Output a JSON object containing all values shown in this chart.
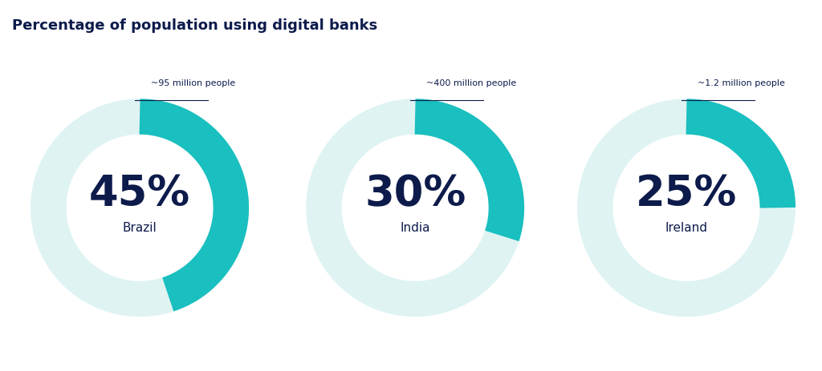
{
  "title": "Percentage of population using digital banks",
  "title_color": "#0d1b4b",
  "title_fontsize": 13,
  "background_color": "#ffffff",
  "charts": [
    {
      "percentage": 45,
      "label": "45%",
      "country": "Brazil",
      "annotation": "~95 million people",
      "filled_color": "#1abfbf",
      "empty_color": "#dff3f3"
    },
    {
      "percentage": 30,
      "label": "30%",
      "country": "India",
      "annotation": "~400 million people",
      "filled_color": "#1abfbf",
      "empty_color": "#dff3f3"
    },
    {
      "percentage": 25,
      "label": "25%",
      "country": "Ireland",
      "annotation": "~1.2 million people",
      "filled_color": "#1abfbf",
      "empty_color": "#dff3f3"
    }
  ],
  "donut_linewidth": 32,
  "text_color": "#0d1b4b",
  "annotation_color": "#0d1b4b",
  "annotation_fontsize": 8,
  "pct_fontsize": 38,
  "country_fontsize": 11
}
